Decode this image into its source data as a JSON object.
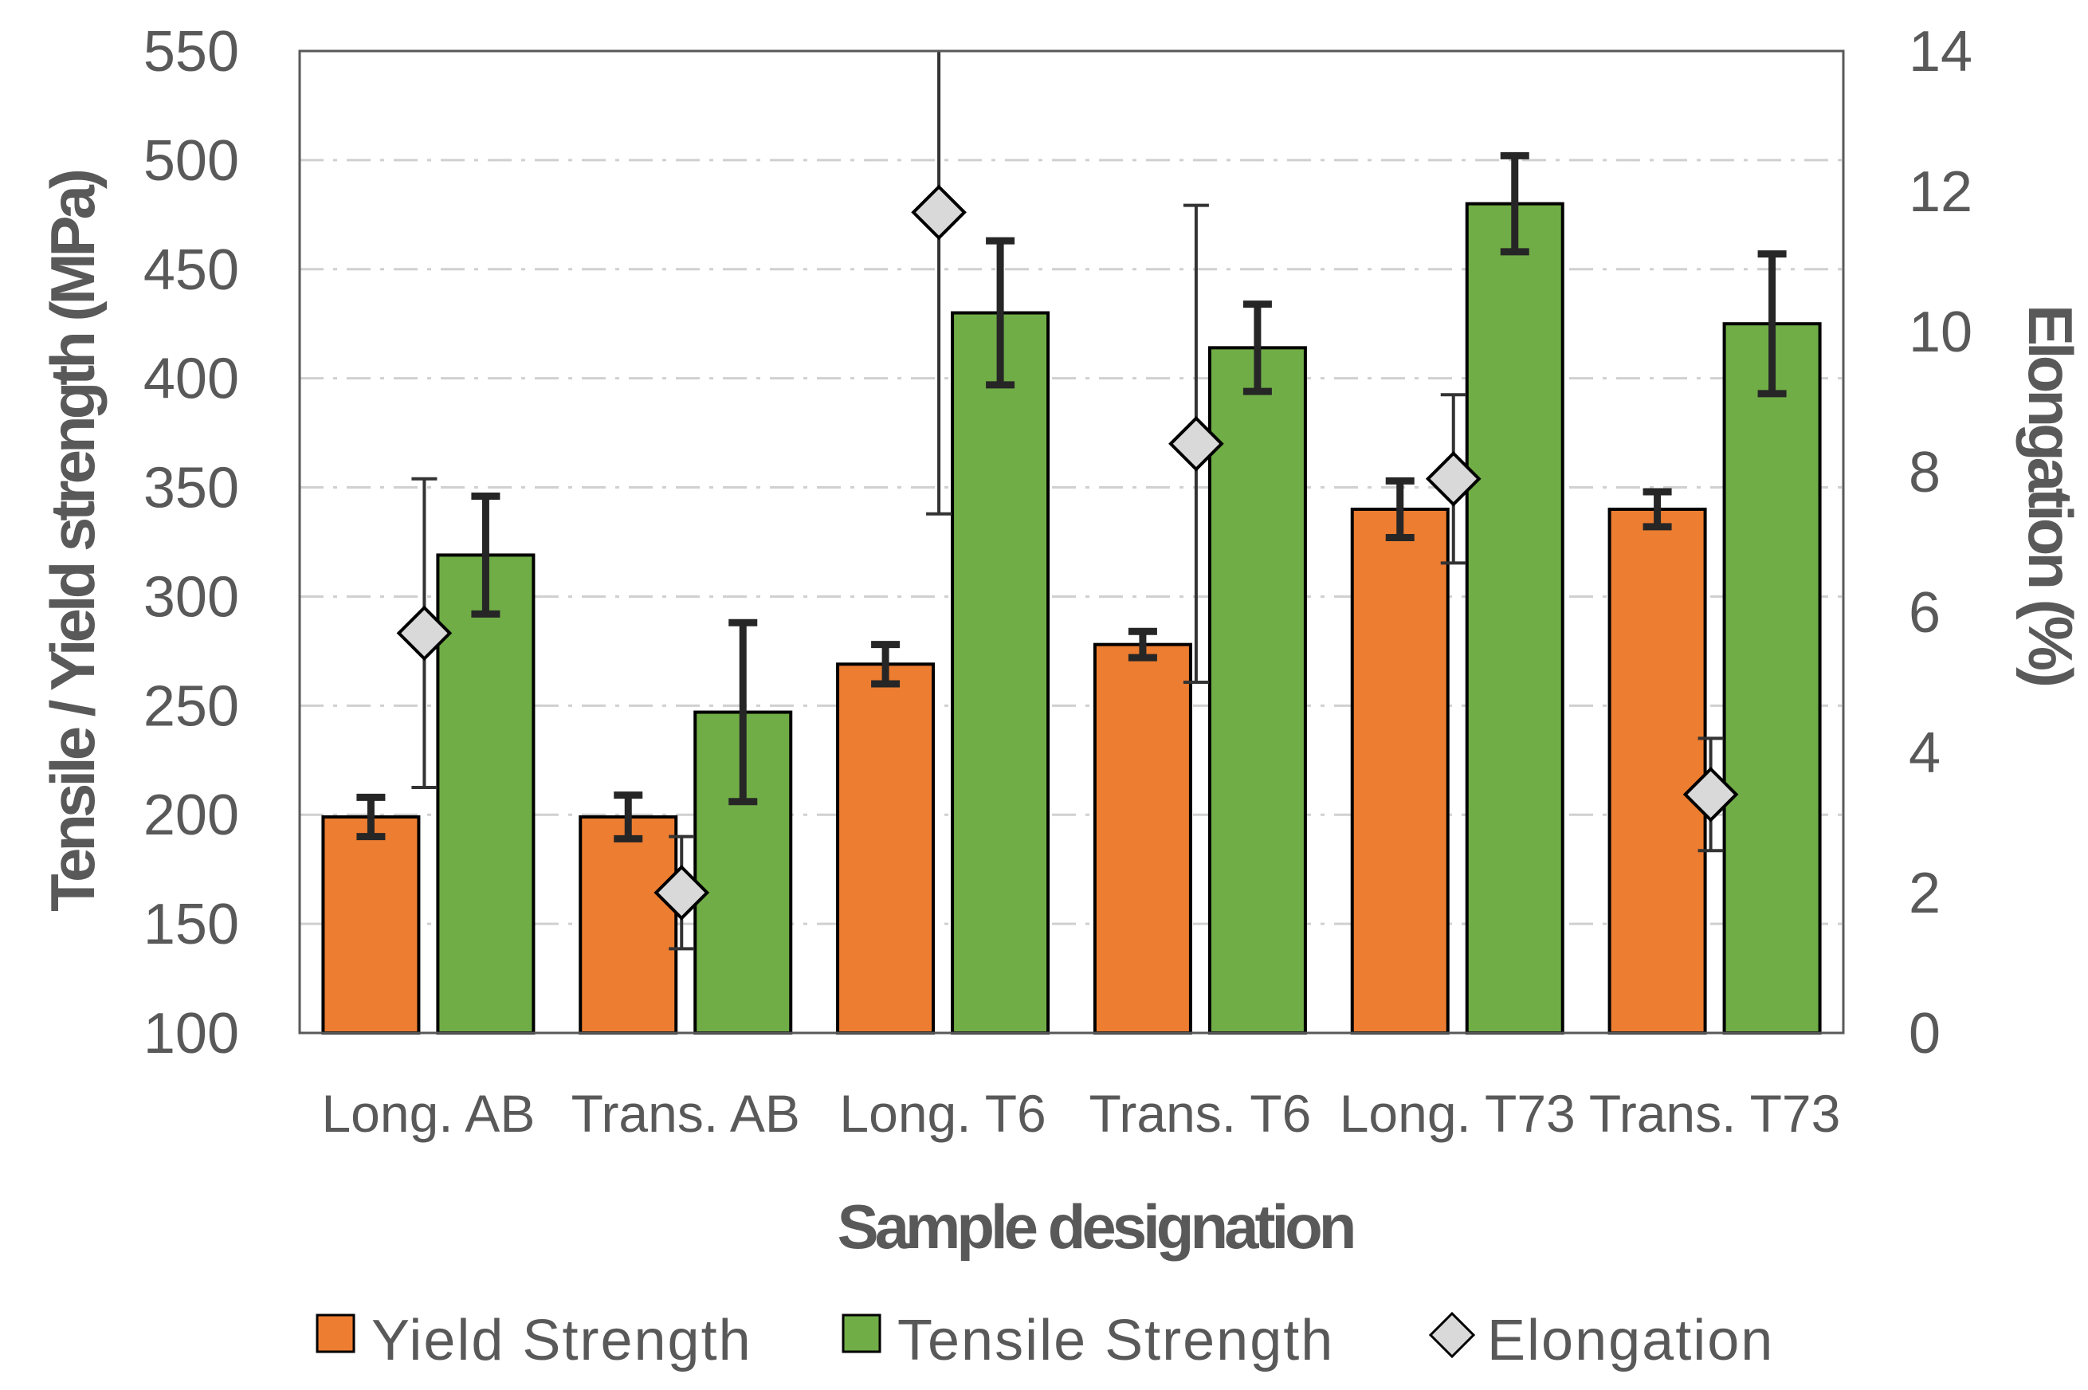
{
  "chart_data": {
    "type": "bar",
    "xlabel": "Sample designation",
    "ylabel": "Tensile / Yield strength (MPa)",
    "y2label": "Elongation (%)",
    "ylim": [
      100,
      550
    ],
    "y2lim": [
      0,
      14
    ],
    "yticks": [
      "100",
      "150",
      "200",
      "250",
      "300",
      "350",
      "400",
      "450",
      "500",
      "550"
    ],
    "y2ticks": [
      "0",
      "2",
      "4",
      "6",
      "8",
      "10",
      "12",
      "14"
    ],
    "grid": "horizontal dash-dot",
    "categories": [
      "Long. AB",
      "Trans. AB",
      "Long. T6",
      "Trans. T6",
      "Long. T73",
      "Trans. T73"
    ],
    "series": [
      {
        "name": "Yield Strength",
        "kind": "bar",
        "axis": "left",
        "color": "#ed7d31",
        "values": [
          199,
          199,
          269,
          278,
          340,
          340
        ],
        "errors": [
          9,
          10,
          9,
          6,
          13,
          8
        ]
      },
      {
        "name": "Tensile Strength",
        "kind": "bar",
        "axis": "left",
        "color": "#70ad47",
        "values": [
          319,
          247,
          430,
          414,
          480,
          425
        ],
        "errors": [
          27,
          41,
          33,
          20,
          22,
          32
        ]
      },
      {
        "name": "Elongation",
        "kind": "marker",
        "axis": "right",
        "color": "#d9d9d9",
        "values": [
          5.7,
          2.0,
          11.7,
          8.4,
          7.9,
          3.4
        ],
        "errors": [
          2.2,
          0.8,
          4.3,
          3.4,
          1.2,
          0.8
        ]
      }
    ],
    "legend": "bottom"
  }
}
